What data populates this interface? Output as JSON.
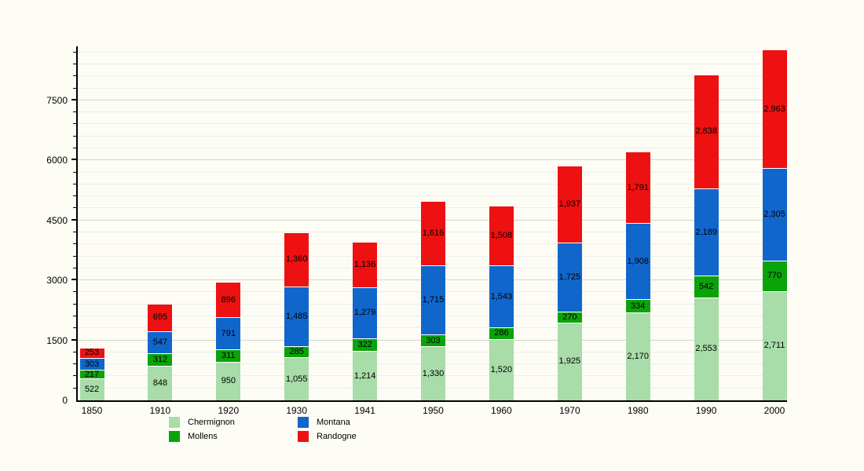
{
  "chart_data": {
    "type": "bar",
    "stacked": true,
    "title": "",
    "xlabel": "",
    "ylabel": "",
    "categories": [
      "1850",
      "1910",
      "1920",
      "1930",
      "1941",
      "1950",
      "1960",
      "1970",
      "1980",
      "1990",
      "2000"
    ],
    "series": [
      {
        "name": "Chermignon",
        "color": "#a8dca8",
        "values": [
          522,
          848,
          950,
          1055,
          1214,
          1330,
          1520,
          1925,
          2170,
          2553,
          2711
        ]
      },
      {
        "name": "Mollens",
        "color": "#0aa30a",
        "values": [
          217,
          312,
          311,
          285,
          322,
          303,
          286,
          270,
          334,
          542,
          770
        ]
      },
      {
        "name": "Montana",
        "color": "#1166cc",
        "values": [
          303,
          547,
          791,
          1485,
          1279,
          1715,
          1543,
          1725,
          1908,
          2189,
          2305
        ]
      },
      {
        "name": "Randogne",
        "color": "#ee1111",
        "values": [
          253,
          695,
          896,
          1360,
          1136,
          1616,
          1508,
          1937,
          1791,
          2838,
          2963
        ]
      }
    ],
    "y_ticks": [
      0,
      1500,
      3000,
      4500,
      6000,
      7500
    ],
    "y_minor_step": 300,
    "ylim": [
      0,
      8850
    ],
    "grid": true,
    "legend_position": "bottom",
    "legend_columns": [
      [
        "Chermignon",
        "Mollens"
      ],
      [
        "Montana",
        "Randogne"
      ]
    ],
    "value_labels": true,
    "axis_color": "#000000",
    "gridline_minor_color": "#ececec",
    "gridline_major_color": "#d4d4d4",
    "background_color": "#fdfdf5"
  }
}
